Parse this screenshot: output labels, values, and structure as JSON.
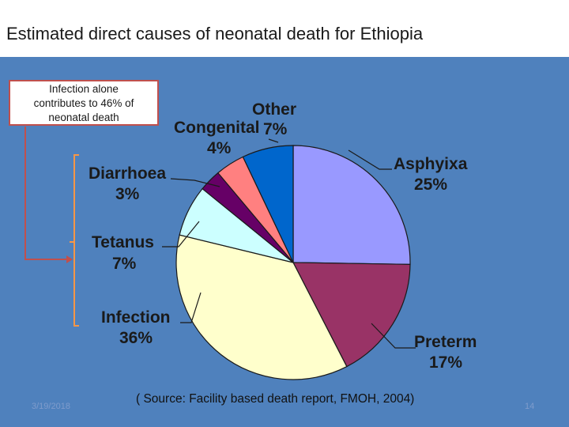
{
  "slide": {
    "title": "Estimated direct causes of neonatal death for Ethiopia",
    "note_lines": [
      "Infection alone",
      "contributes to   46% of",
      "neonatal death"
    ],
    "source": "( Source: Facility based death report, FMOH, 2004)",
    "date": "3/19/2018",
    "page_number": "14"
  },
  "chart_data": {
    "type": "pie",
    "slices": [
      {
        "name": "Asphyixa",
        "label": "25%",
        "value": 25,
        "color": "#9999ff"
      },
      {
        "name": "Preterm",
        "label": "17%",
        "value": 17,
        "color": "#993366"
      },
      {
        "name": "Infection",
        "label": "36%",
        "value": 36,
        "color": "#ffffcc"
      },
      {
        "name": "Tetanus",
        "label": "7%",
        "value": 7,
        "color": "#ccffff"
      },
      {
        "name": "Diarrhoea",
        "label": "3%",
        "value": 3,
        "color": "#660066"
      },
      {
        "name": "Congenital",
        "label": "4%",
        "value": 4,
        "color": "#ff8080"
      },
      {
        "name": "Other",
        "label": "7%",
        "value": 7,
        "color": "#0066cc"
      }
    ],
    "bracket_note_percent": "46%"
  }
}
